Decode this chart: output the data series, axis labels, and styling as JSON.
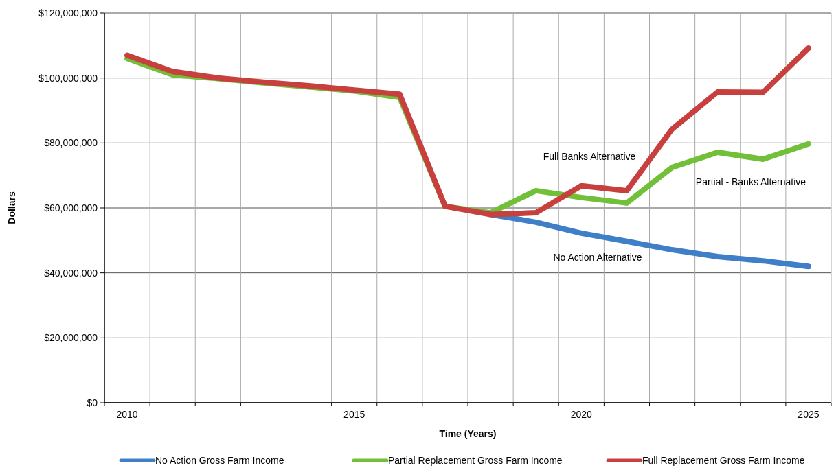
{
  "chart_data": {
    "type": "line",
    "xlabel": "Time (Years)",
    "ylabel": "Dollars",
    "categories": [
      "2010",
      null,
      null,
      null,
      null,
      "2015",
      null,
      null,
      null,
      null,
      "2020",
      null,
      null,
      null,
      null,
      "2025"
    ],
    "series": [
      {
        "name": "No Action Gross Farm Income",
        "color": "#3f7fc8",
        "values": [
          null,
          null,
          null,
          null,
          null,
          null,
          null,
          null,
          58000000,
          55600000,
          52200000,
          49700000,
          47100000,
          45000000,
          43700000,
          42000000
        ]
      },
      {
        "name": "Partial Replacement Gross Farm Income",
        "color": "#72bf3a",
        "values": [
          106000000,
          101000000,
          99800000,
          98500000,
          97300000,
          96000000,
          94000000,
          60500000,
          58500000,
          65300000,
          63200000,
          61500000,
          72500000,
          77100000,
          75000000,
          79700000
        ]
      },
      {
        "name": "Full Replacement Gross Farm Income",
        "color": "#c8403e",
        "values": [
          107000000,
          102000000,
          100000000,
          98700000,
          97600000,
          96300000,
          95000000,
          60500000,
          58000000,
          58500000,
          66800000,
          65300000,
          84300000,
          95700000,
          95600000,
          109200000
        ]
      }
    ],
    "ylim": [
      0,
      120000000
    ],
    "yticks": [
      {
        "value": 0,
        "label": "$0"
      },
      {
        "value": 20000000,
        "label": "$20,000,000"
      },
      {
        "value": 40000000,
        "label": "$40,000,000"
      },
      {
        "value": 60000000,
        "label": "$60,000,000"
      },
      {
        "value": 80000000,
        "label": "$80,000,000"
      },
      {
        "value": 100000000,
        "label": "$100,000,000"
      },
      {
        "value": 120000000,
        "label": "$120,000,000"
      }
    ],
    "grid": true,
    "legend": "bottom",
    "marker": "none",
    "line_style": "solid",
    "annotations": [
      "Full Banks Alternative",
      "Partial - Banks Alternative",
      "No Action Alternative"
    ]
  }
}
